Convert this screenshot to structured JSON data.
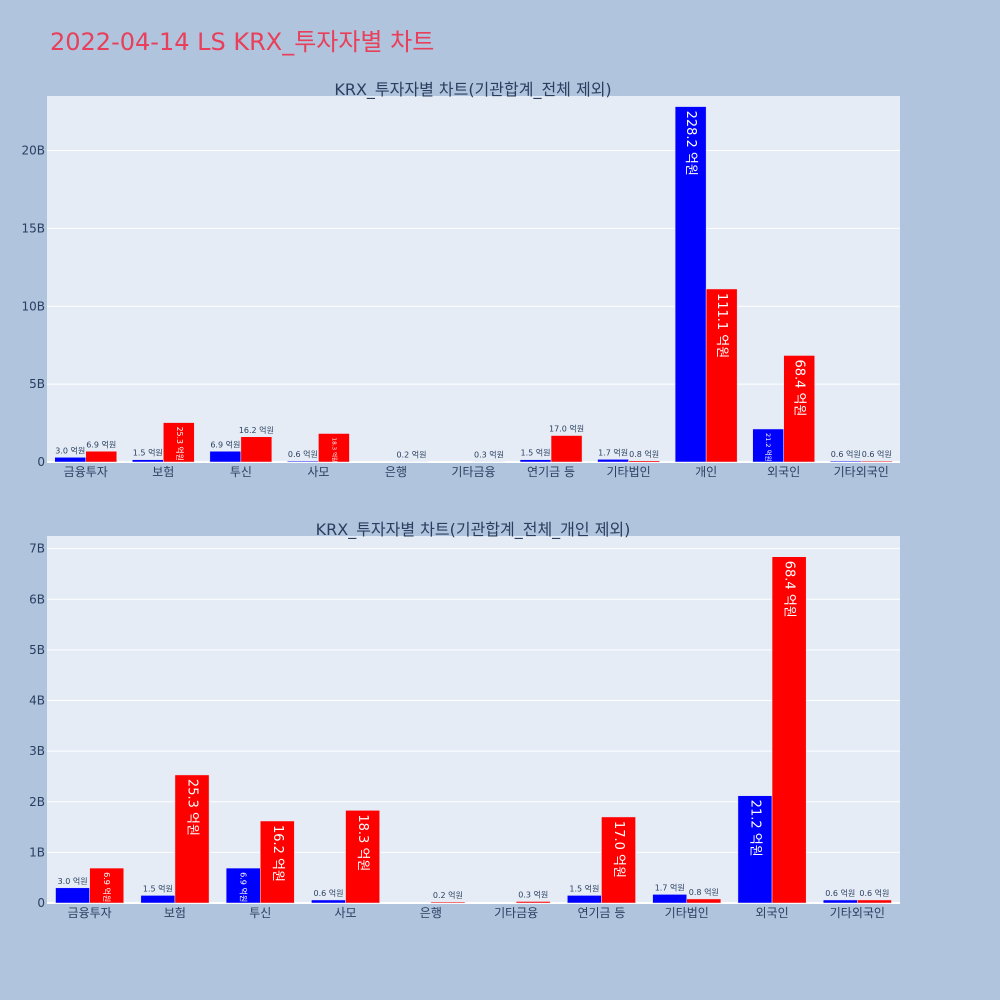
{
  "page_title": "2022-04-14 LS KRX_투자자별 차트",
  "colors": {
    "background": "#b0c4de",
    "plot_bg": "#e5ecf6",
    "title": "#e8405a",
    "series_a": "#0000ff",
    "series_b": "#ff0000",
    "text": "#2a3f5f"
  },
  "chart_data": [
    {
      "type": "bar",
      "title": "KRX_투자자별 차트(기관합계_전체 제외)",
      "categories": [
        "금융투자",
        "보험",
        "투신",
        "사모",
        "은행",
        "기타금융",
        "연기금 등",
        "기타법인",
        "개인",
        "외국인",
        "기타외국인"
      ],
      "series": [
        {
          "color": "#0000ff",
          "values": [
            300000000,
            150000000,
            690000000,
            60000000,
            0,
            0,
            150000000,
            170000000,
            22820000000,
            2120000000,
            60000000
          ],
          "labels": [
            "3.0 억원",
            "1.5 억원",
            "6.9 억원",
            "0.6 억원",
            "",
            "",
            "1.5 억원",
            "1.7 억원",
            "228.2 억원",
            "21.2 억원",
            "0.6 억원"
          ]
        },
        {
          "color": "#ff0000",
          "values": [
            690000000,
            2530000000,
            1620000000,
            1830000000,
            20000000,
            30000000,
            1700000000,
            80000000,
            11110000000,
            6840000000,
            60000000
          ],
          "labels": [
            "6.9 억원",
            "25.3 억원",
            "16.2 억원",
            "18.3 억원",
            "0.2 억원",
            "0.3 억원",
            "17.0 억원",
            "0.8 억원",
            "111.1 억원",
            "68.4 억원",
            "0.6 억원"
          ]
        }
      ],
      "ylim": [
        0,
        23500000000
      ],
      "yticks": [
        0,
        5000000000,
        10000000000,
        15000000000,
        20000000000
      ],
      "ytick_labels": [
        "0",
        "5B",
        "10B",
        "15B",
        "20B"
      ],
      "grid": true
    },
    {
      "type": "bar",
      "title": "KRX_투자자별 차트(기관합계_전체_개인 제외)",
      "categories": [
        "금융투자",
        "보험",
        "투신",
        "사모",
        "은행",
        "기타금융",
        "연기금 등",
        "기타법인",
        "외국인",
        "기타외국인"
      ],
      "series": [
        {
          "color": "#0000ff",
          "values": [
            300000000,
            150000000,
            690000000,
            60000000,
            0,
            0,
            150000000,
            170000000,
            2120000000,
            60000000
          ],
          "labels": [
            "3.0 억원",
            "1.5 억원",
            "6.9 억원",
            "0.6 억원",
            "",
            "",
            "1.5 억원",
            "1.7 억원",
            "21.2 억원",
            "0.6 억원"
          ]
        },
        {
          "color": "#ff0000",
          "values": [
            690000000,
            2530000000,
            1620000000,
            1830000000,
            20000000,
            30000000,
            1700000000,
            80000000,
            6840000000,
            60000000
          ],
          "labels": [
            "6.9 억원",
            "25.3 억원",
            "16.2 억원",
            "18.3 억원",
            "0.2 억원",
            "0.3 억원",
            "17.0 억원",
            "0.8 억원",
            "68.4 억원",
            "0.6 억원"
          ]
        }
      ],
      "ylim": [
        0,
        7250000000
      ],
      "yticks": [
        0,
        1000000000,
        2000000000,
        3000000000,
        4000000000,
        5000000000,
        6000000000,
        7000000000
      ],
      "ytick_labels": [
        "0",
        "1B",
        "2B",
        "3B",
        "4B",
        "5B",
        "6B",
        "7B"
      ],
      "grid": true
    }
  ]
}
